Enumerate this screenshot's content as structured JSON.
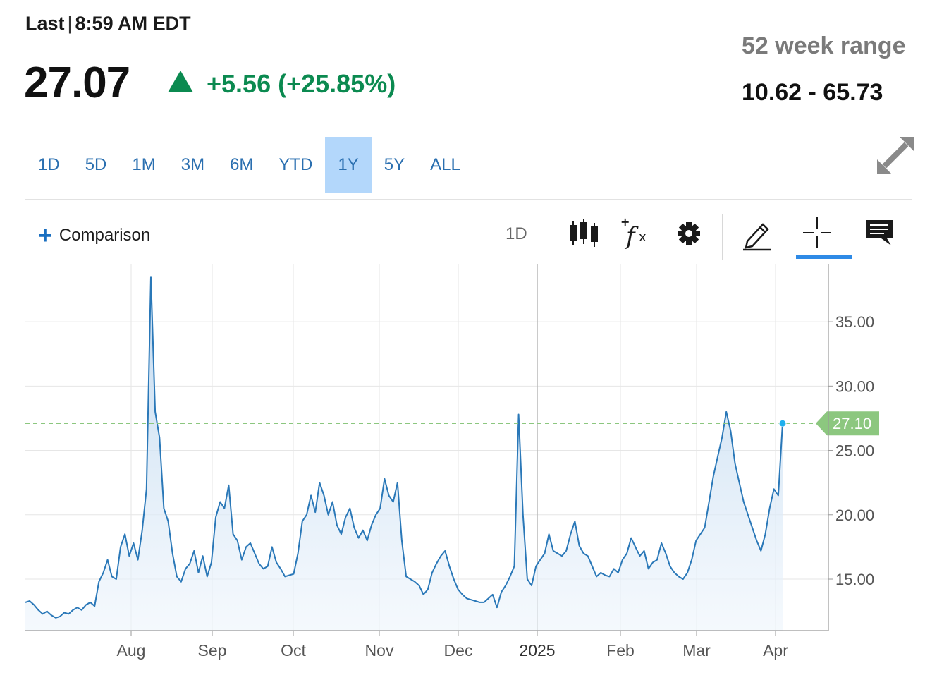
{
  "header": {
    "last_label": "Last",
    "time": "8:59 AM EDT",
    "price": "27.07",
    "change": "+5.56 (+25.85%)",
    "range_label": "52 week range",
    "range_value": "10.62 - 65.73"
  },
  "tabs": [
    {
      "label": "1D"
    },
    {
      "label": "5D"
    },
    {
      "label": "1M"
    },
    {
      "label": "3M"
    },
    {
      "label": "6M"
    },
    {
      "label": "YTD"
    },
    {
      "label": "1Y",
      "active": true
    },
    {
      "label": "5Y"
    },
    {
      "label": "ALL"
    }
  ],
  "toolbar": {
    "comparison_label": "Comparison",
    "interval_label": "1D",
    "icons": [
      "candlestick-icon",
      "indicator-fx-icon",
      "gear-icon",
      "pencil-icon",
      "crosshair-icon",
      "comment-icon"
    ]
  },
  "colors": {
    "accent": "#2a6fb0",
    "positive": "#0b8a50",
    "line": "#2a78b8",
    "last_price_tag": "#8cc77f",
    "active_tab": "#b3d7fb"
  },
  "chart_data": {
    "type": "area",
    "ylim": [
      11,
      39.5
    ],
    "y_ticks": [
      "15.00",
      "20.00",
      "25.00",
      "30.00",
      "35.00"
    ],
    "x_ticks": [
      "Aug",
      "Sep",
      "Oct",
      "Nov",
      "Dec",
      "2025",
      "Feb",
      "Mar",
      "Apr"
    ],
    "last_value_label": "27.10",
    "last_value": 27.1,
    "grid": true,
    "series": [
      {
        "values": [
          13.2,
          13.3,
          13.0,
          12.6,
          12.3,
          12.5,
          12.2,
          12.0,
          12.1,
          12.4,
          12.3,
          12.6,
          12.8,
          12.6,
          13.0,
          13.2,
          12.9,
          14.8,
          15.5,
          16.5,
          15.2,
          15.0,
          17.5,
          18.5,
          16.8,
          17.8,
          16.5,
          18.8,
          22.0,
          38.5,
          28.0,
          26.0,
          20.5,
          19.5,
          17.0,
          15.2,
          14.8,
          15.8,
          16.2,
          17.2,
          15.5,
          16.8,
          15.2,
          16.3,
          19.8,
          21.0,
          20.5,
          22.3,
          18.5,
          18.0,
          16.5,
          17.5,
          17.8,
          17.0,
          16.2,
          15.8,
          16.0,
          17.5,
          16.3,
          15.8,
          15.2,
          15.3,
          15.4,
          17.0,
          19.5,
          20.0,
          21.5,
          20.2,
          22.5,
          21.5,
          20.0,
          21.0,
          19.2,
          18.5,
          19.8,
          20.5,
          19.0,
          18.2,
          18.8,
          18.0,
          19.2,
          20.0,
          20.5,
          22.8,
          21.5,
          21.0,
          22.5,
          18.0,
          15.2,
          15.0,
          14.8,
          14.5,
          13.8,
          14.2,
          15.5,
          16.2,
          16.8,
          17.2,
          16.0,
          15.0,
          14.2,
          13.8,
          13.5,
          13.4,
          13.3,
          13.2,
          13.2,
          13.5,
          13.8,
          12.8,
          14.0,
          14.5,
          15.2,
          16.0,
          27.8,
          20.0,
          15.0,
          14.5,
          16.0,
          16.5,
          17.0,
          18.5,
          17.2,
          17.0,
          16.8,
          17.2,
          18.5,
          19.5,
          17.6,
          17.0,
          16.8,
          16.0,
          15.2,
          15.5,
          15.3,
          15.2,
          15.8,
          15.5,
          16.5,
          17.0,
          18.2,
          17.5,
          16.8,
          17.2,
          15.8,
          16.3,
          16.5,
          17.8,
          17.0,
          16.0,
          15.5,
          15.2,
          15.0,
          15.5,
          16.5,
          18.0,
          18.5,
          19.0,
          21.0,
          23.0,
          24.5,
          26.0,
          28.0,
          26.5,
          24.0,
          22.5,
          21.0,
          20.0,
          19.0,
          18.0,
          17.2,
          18.5,
          20.5,
          22.0,
          21.5,
          27.1
        ]
      }
    ]
  }
}
